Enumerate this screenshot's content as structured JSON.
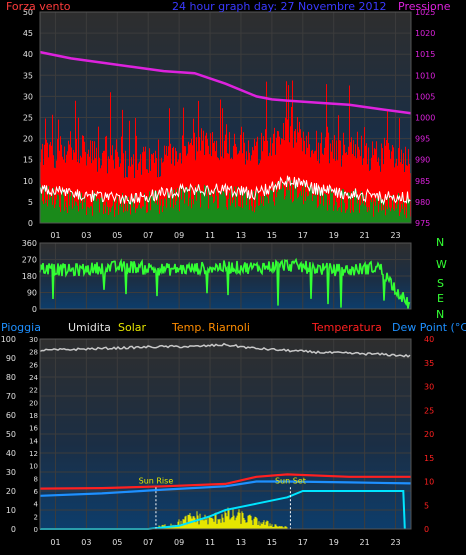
{
  "header": {
    "left_label": "Forza vento",
    "title": "24 hour graph day: 27 Novembre 2012",
    "right_label": "Pressione"
  },
  "legend": {
    "pioggia": "Pioggia",
    "umidita": "Umidita",
    "solar": "Solar",
    "temp_riarnoli": "Temp. Riarnoli",
    "temperatura": "Temperatura",
    "dew_point": "Dew Point (°C)"
  },
  "direction_letters": [
    "N",
    "W",
    "S",
    "E",
    "N"
  ],
  "colors": {
    "wind_gust": "#ff0000",
    "wind_avg": "#ffffff",
    "wind_low": "#1a8a1a",
    "pressure": "#dd22dd",
    "direction": "#33ff33",
    "humidity": "#c8c8c8",
    "temperature": "#ff2020",
    "dew_point": "#1e90ff",
    "solar": "#e6e600",
    "rain": "#00e5ff",
    "temp_riarnoli": "#ff8c00"
  },
  "chart_data": [
    {
      "type": "line",
      "name": "wind_pressure",
      "x_tick_labels": [
        "01",
        "03",
        "05",
        "07",
        "09",
        "11",
        "13",
        "15",
        "17",
        "19",
        "21",
        "23"
      ],
      "y_left": {
        "ticks": [
          0,
          5,
          10,
          15,
          20,
          25,
          30,
          35,
          40,
          45,
          50
        ],
        "ylim": [
          0,
          50
        ]
      },
      "y_right": {
        "ticks": [
          975,
          980,
          985,
          990,
          995,
          1000,
          1005,
          1010,
          1015,
          1020,
          1025
        ],
        "ylim": [
          975,
          1025
        ]
      },
      "series": [
        {
          "name": "Pressione",
          "x": [
            0,
            2,
            4,
            6,
            8,
            10,
            12,
            14,
            15,
            16,
            18,
            20,
            22,
            24
          ],
          "values": [
            1015.5,
            1014,
            1013,
            1012,
            1011,
            1010.5,
            1008,
            1005,
            1004.3,
            1004,
            1003.5,
            1003,
            1002,
            1001
          ]
        },
        {
          "name": "Forza vento (gust)",
          "x": [
            0,
            2,
            4,
            6,
            8,
            10,
            12,
            14,
            16,
            18,
            20,
            22,
            24
          ],
          "values": [
            16,
            18,
            15,
            14,
            15,
            18,
            19,
            17,
            22,
            18,
            17,
            16,
            15
          ]
        },
        {
          "name": "Forza vento (avg)",
          "x": [
            0,
            2,
            4,
            6,
            8,
            10,
            12,
            14,
            16,
            18,
            20,
            22,
            24
          ],
          "values": [
            8,
            7,
            6,
            6,
            7,
            8,
            8,
            7,
            10,
            8,
            7,
            6,
            6
          ]
        }
      ]
    },
    {
      "type": "scatter",
      "name": "wind_direction",
      "y_ticks": [
        0,
        90,
        180,
        270,
        360
      ],
      "ylim": [
        0,
        360
      ],
      "x": [
        0,
        2,
        4,
        6,
        8,
        10,
        12,
        14,
        16,
        18,
        20,
        22,
        24
      ],
      "values": [
        225,
        210,
        225,
        230,
        215,
        220,
        230,
        225,
        240,
        220,
        210,
        230,
        10
      ]
    },
    {
      "type": "line",
      "name": "temp_humidity",
      "y_left_ticks": [
        0,
        10,
        20,
        30,
        40,
        50,
        60,
        70,
        80,
        90,
        100
      ],
      "y_left_small_ticks": [
        0,
        2,
        4,
        6,
        8,
        10,
        12,
        14,
        16,
        18,
        20,
        22,
        24,
        26,
        28,
        30
      ],
      "y_right_ticks": [
        0,
        5,
        10,
        15,
        20,
        25,
        30,
        35,
        40
      ],
      "annotations": [
        "Sun Rise",
        "Sun Set"
      ],
      "series": [
        {
          "name": "Umidita",
          "x": [
            0,
            4,
            8,
            10,
            12,
            14,
            18,
            22,
            24
          ],
          "values": [
            94,
            95,
            96,
            96,
            97,
            95,
            93,
            92,
            91
          ]
        },
        {
          "name": "Temperatura",
          "x": [
            0,
            4,
            8,
            12,
            14,
            16,
            20,
            24
          ],
          "values": [
            8.5,
            8.6,
            9,
            9.5,
            11,
            11.5,
            11,
            11
          ]
        },
        {
          "name": "Dew Point",
          "x": [
            0,
            4,
            8,
            12,
            14,
            16,
            20,
            24
          ],
          "values": [
            7,
            7.5,
            8.3,
            9,
            10,
            10,
            9.8,
            9.6
          ]
        },
        {
          "name": "Pioggia",
          "x": [
            0,
            7,
            9,
            11,
            12,
            14,
            16,
            17,
            20,
            23,
            23.5,
            23.6
          ],
          "values": [
            0,
            0,
            0.5,
            2,
            3,
            4,
            5,
            6,
            6,
            6,
            6,
            0
          ]
        },
        {
          "name": "Solar",
          "x": [
            7.5,
            9,
            10,
            11,
            12,
            13,
            14,
            15,
            16
          ],
          "values": [
            1,
            4,
            8,
            6,
            9,
            8,
            5,
            3,
            1
          ]
        }
      ]
    }
  ]
}
